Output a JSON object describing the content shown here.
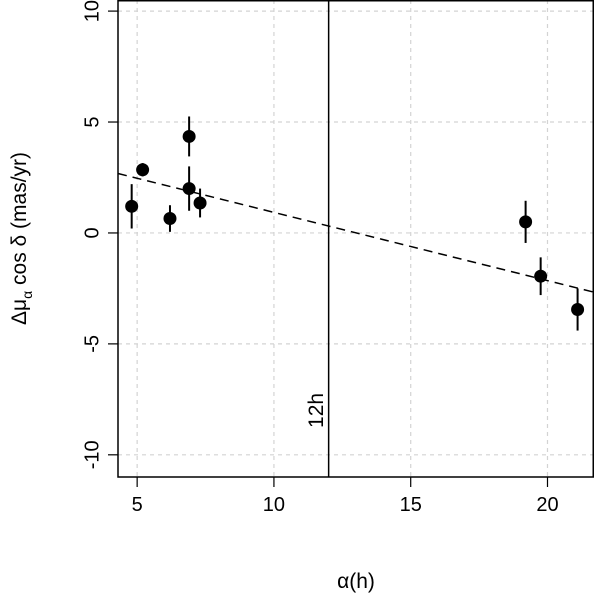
{
  "chart_data": {
    "type": "scatter",
    "xlabel": "α(h)",
    "ylabel": "Δμα cos δ (mas/yr)",
    "ylabel_main": "Δμ",
    "ylabel_sub": "α",
    "ylabel_rest": " cos δ (mas/yr)",
    "xlim": [
      4.3,
      21.7
    ],
    "ylim": [
      -11,
      10.5
    ],
    "x_ticks": [
      5,
      10,
      15,
      20
    ],
    "y_ticks": [
      -10,
      -5,
      0,
      5,
      10
    ],
    "x_tick_labels": [
      "5",
      "10",
      "15",
      "20"
    ],
    "y_tick_labels": [
      "-10",
      "-5",
      "0",
      "5",
      "10"
    ],
    "grid": true,
    "points": [
      {
        "x": 4.8,
        "y": 1.2,
        "err": 1.0
      },
      {
        "x": 5.2,
        "y": 2.85,
        "err": 0.3
      },
      {
        "x": 6.2,
        "y": 0.65,
        "err": 0.6
      },
      {
        "x": 6.9,
        "y": 4.35,
        "err": 0.9
      },
      {
        "x": 6.9,
        "y": 2.0,
        "err": 1.0
      },
      {
        "x": 7.3,
        "y": 1.35,
        "err": 0.65
      },
      {
        "x": 19.2,
        "y": 0.5,
        "err": 0.95
      },
      {
        "x": 19.75,
        "y": -1.95,
        "err": 0.85
      },
      {
        "x": 21.1,
        "y": -3.45,
        "err": 0.95
      }
    ],
    "fit_line": {
      "x": [
        4.3,
        21.7
      ],
      "y": [
        2.68,
        -2.67
      ],
      "style": "dashed"
    },
    "vline": {
      "x": 12,
      "label": "12h"
    }
  }
}
